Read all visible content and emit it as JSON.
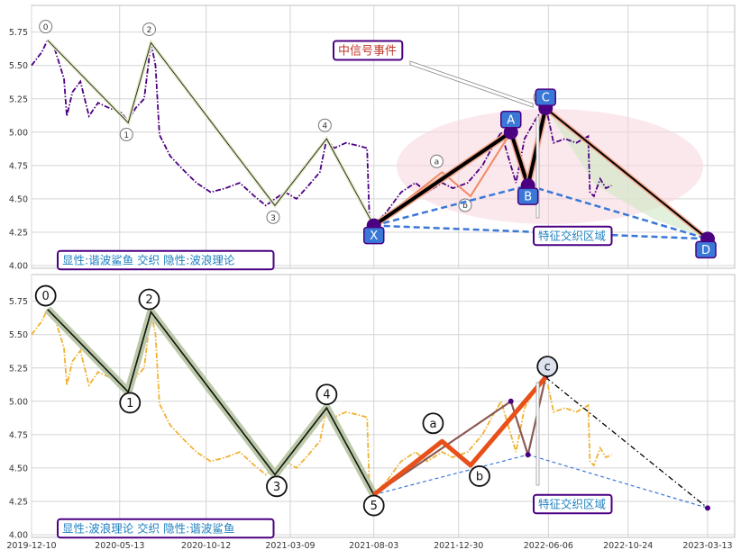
{
  "chart_data": {
    "type": "line",
    "x_ticks": [
      "2019-12-10",
      "2020-05-13",
      "2020-10-12",
      "2021-03-09",
      "2021-08-03",
      "2021-12-30",
      "2022-06-06",
      "2022-10-24",
      "2023-03-13"
    ],
    "y_ticks": [
      "4.00",
      "4.25",
      "4.50",
      "4.75",
      "5.00",
      "5.25",
      "5.50",
      "5.75"
    ],
    "ylim": [
      3.98,
      5.95
    ],
    "grid": true,
    "colors": {
      "top_price": "#4b0082",
      "bottom_price": "#f0b232",
      "wave_line": "#111111",
      "harmonic_blue": "#3a78d8",
      "box_border": "#4b0082",
      "box_text": "#1d7fbf",
      "label_red": "#c0392b",
      "orange_bold": "#e8501a"
    },
    "panels": [
      {
        "id": "top",
        "legend_text": "显性:谐波鲨鱼 交织 隐性:波浪理论",
        "annotation_text": "中信号事件",
        "zone_text": "特征交织区域",
        "price": [
          [
            "2019-12-10",
            5.5
          ],
          [
            "2019-12-28",
            5.6
          ],
          [
            "2020-01-07",
            5.69
          ],
          [
            "2020-01-20",
            5.62
          ],
          [
            "2020-02-05",
            5.4
          ],
          [
            "2020-02-10",
            5.12
          ],
          [
            "2020-02-20",
            5.3
          ],
          [
            "2020-03-05",
            5.38
          ],
          [
            "2020-03-20",
            5.12
          ],
          [
            "2020-04-05",
            5.22
          ],
          [
            "2020-04-25",
            5.18
          ],
          [
            "2020-05-15",
            5.15
          ],
          [
            "2020-05-28",
            5.08
          ],
          [
            "2020-06-10",
            5.18
          ],
          [
            "2020-06-25",
            5.25
          ],
          [
            "2020-07-07",
            5.67
          ],
          [
            "2020-07-15",
            5.5
          ],
          [
            "2020-07-22",
            4.98
          ],
          [
            "2020-08-10",
            4.82
          ],
          [
            "2020-09-01",
            4.72
          ],
          [
            "2020-09-25",
            4.62
          ],
          [
            "2020-10-20",
            4.55
          ],
          [
            "2020-11-15",
            4.58
          ],
          [
            "2020-12-10",
            4.62
          ],
          [
            "2021-01-05",
            4.52
          ],
          [
            "2021-01-25",
            4.45
          ],
          [
            "2021-02-10",
            4.5
          ],
          [
            "2021-02-28",
            4.55
          ],
          [
            "2021-03-20",
            4.5
          ],
          [
            "2021-04-10",
            4.6
          ],
          [
            "2021-04-30",
            4.7
          ],
          [
            "2021-05-12",
            4.95
          ],
          [
            "2021-05-25",
            4.88
          ],
          [
            "2021-06-15",
            4.92
          ],
          [
            "2021-07-05",
            4.9
          ],
          [
            "2021-07-22",
            4.88
          ],
          [
            "2021-07-26",
            4.38
          ],
          [
            "2021-08-03",
            4.3
          ],
          [
            "2021-08-25",
            4.4
          ],
          [
            "2021-09-20",
            4.55
          ],
          [
            "2021-10-15",
            4.62
          ],
          [
            "2021-11-05",
            4.55
          ],
          [
            "2021-12-01",
            4.62
          ],
          [
            "2021-12-20",
            4.58
          ],
          [
            "2022-01-15",
            4.62
          ],
          [
            "2022-02-10",
            4.75
          ],
          [
            "2022-03-01",
            4.9
          ],
          [
            "2022-03-15",
            5.0
          ],
          [
            "2022-03-25",
            4.85
          ],
          [
            "2022-04-10",
            4.62
          ],
          [
            "2022-04-25",
            4.95
          ],
          [
            "2022-05-15",
            5.1
          ],
          [
            "2022-05-25",
            5.16
          ],
          [
            "2022-06-05",
            5.12
          ],
          [
            "2022-06-15",
            4.92
          ],
          [
            "2022-07-05",
            4.95
          ],
          [
            "2022-07-25",
            4.92
          ],
          [
            "2022-08-15",
            4.97
          ],
          [
            "2022-08-18",
            4.55
          ],
          [
            "2022-08-25",
            4.52
          ],
          [
            "2022-09-05",
            4.65
          ],
          [
            "2022-09-15",
            4.58
          ],
          [
            "2022-09-25",
            4.6
          ]
        ],
        "wave_points": [
          {
            "date": "2020-01-07",
            "value": 5.69,
            "label": "0"
          },
          {
            "date": "2020-05-28",
            "value": 5.07,
            "label": "1"
          },
          {
            "date": "2020-07-07",
            "value": 5.67,
            "label": "2"
          },
          {
            "date": "2021-02-10",
            "value": 4.45,
            "label": "3"
          },
          {
            "date": "2021-05-12",
            "value": 4.95,
            "label": "4"
          }
        ],
        "harmonic_points": [
          {
            "date": "2021-08-03",
            "value": 4.3,
            "label": "X"
          },
          {
            "date": "2022-04-01",
            "value": 5.0,
            "label": "A"
          },
          {
            "date": "2022-05-01",
            "value": 4.6,
            "label": "B"
          },
          {
            "date": "2022-06-01",
            "value": 5.18,
            "label": "C"
          },
          {
            "date": "2023-03-13",
            "value": 4.2,
            "label": "D"
          }
        ],
        "small_labels": [
          {
            "date": "2021-12-01",
            "value": 4.7,
            "label": "a"
          },
          {
            "date": "2022-01-20",
            "value": 4.52,
            "label": "b"
          },
          {
            "date": "2022-06-01",
            "value": 5.18,
            "label": "c"
          }
        ]
      },
      {
        "id": "bottom",
        "legend_text": "显性:波浪理论 交织 隐性:谐波鲨鱼",
        "zone_text": "特征交织区域",
        "wave_points": [
          {
            "date": "2020-01-07",
            "value": 5.69,
            "label": "0"
          },
          {
            "date": "2020-05-28",
            "value": 5.07,
            "label": "1"
          },
          {
            "date": "2020-07-07",
            "value": 5.67,
            "label": "2"
          },
          {
            "date": "2021-02-10",
            "value": 4.45,
            "label": "3"
          },
          {
            "date": "2021-05-12",
            "value": 4.95,
            "label": "4"
          },
          {
            "date": "2021-08-03",
            "value": 4.3,
            "label": "5"
          }
        ],
        "sub_wave_points": [
          {
            "date": "2021-12-01",
            "value": 4.7,
            "label": "a"
          },
          {
            "date": "2022-01-20",
            "value": 4.52,
            "label": "b"
          },
          {
            "date": "2022-06-01",
            "value": 5.18,
            "label": "c"
          }
        ]
      }
    ]
  }
}
